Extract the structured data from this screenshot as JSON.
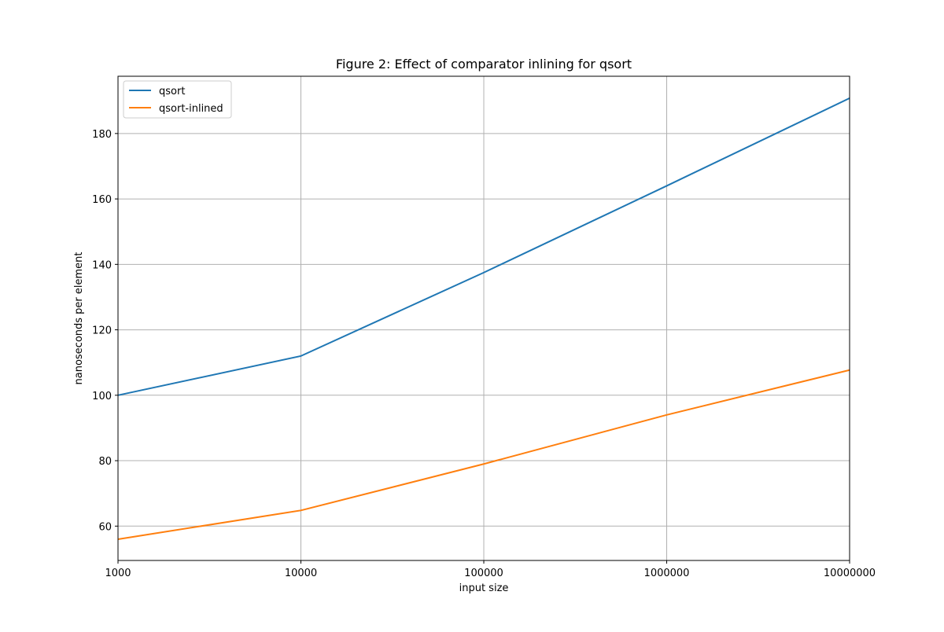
{
  "chart_data": {
    "type": "line",
    "title": "Figure 2: Effect of comparator inlining for qsort",
    "xlabel": "input size",
    "ylabel": "nanoseconds per element",
    "x_scale": "log",
    "x": [
      1000,
      10000,
      100000,
      1000000,
      10000000
    ],
    "x_tick_labels": [
      "1000",
      "10000",
      "100000",
      "1000000",
      "10000000"
    ],
    "xlim": [
      1000,
      10000000
    ],
    "ylim": [
      49.5,
      197.5
    ],
    "y_ticks": [
      60,
      80,
      100,
      120,
      140,
      160,
      180
    ],
    "grid": true,
    "legend_position": "upper-left",
    "series": [
      {
        "name": "qsort",
        "color": "#1f77b4",
        "values": [
          100.0,
          112.0,
          137.5,
          164.0,
          190.8
        ]
      },
      {
        "name": "qsort-inlined",
        "color": "#ff7f0e",
        "values": [
          56.0,
          64.8,
          79.0,
          94.0,
          107.7
        ]
      }
    ]
  }
}
